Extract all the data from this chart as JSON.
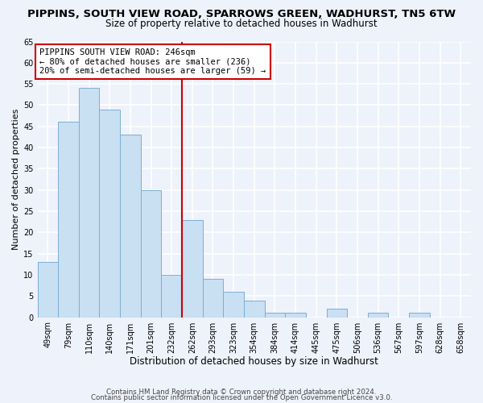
{
  "title1": "PIPPINS, SOUTH VIEW ROAD, SPARROWS GREEN, WADHURST, TN5 6TW",
  "title2": "Size of property relative to detached houses in Wadhurst",
  "xlabel": "Distribution of detached houses by size in Wadhurst",
  "ylabel": "Number of detached properties",
  "bar_values": [
    13,
    46,
    54,
    49,
    43,
    30,
    10,
    23,
    9,
    6,
    4,
    1,
    1,
    0,
    2,
    0,
    1,
    0,
    1,
    0,
    0
  ],
  "bar_labels": [
    "49sqm",
    "79sqm",
    "110sqm",
    "140sqm",
    "171sqm",
    "201sqm",
    "232sqm",
    "262sqm",
    "293sqm",
    "323sqm",
    "354sqm",
    "384sqm",
    "414sqm",
    "445sqm",
    "475sqm",
    "506sqm",
    "536sqm",
    "567sqm",
    "597sqm",
    "628sqm",
    "658sqm"
  ],
  "bar_color": "#c9dff2",
  "bar_edge_color": "#7bafd4",
  "background_color": "#eef2fa",
  "grid_color": "#ffffff",
  "vline_x": 6.5,
  "vline_color": "#cc0000",
  "annotation_title": "PIPPINS SOUTH VIEW ROAD: 246sqm",
  "annotation_line1": "← 80% of detached houses are smaller (236)",
  "annotation_line2": "20% of semi-detached houses are larger (59) →",
  "annotation_box_color": "#ffffff",
  "annotation_box_edge": "#cc0000",
  "ylim": [
    0,
    65
  ],
  "yticks": [
    0,
    5,
    10,
    15,
    20,
    25,
    30,
    35,
    40,
    45,
    50,
    55,
    60,
    65
  ],
  "footer1": "Contains HM Land Registry data © Crown copyright and database right 2024.",
  "footer2": "Contains public sector information licensed under the Open Government Licence v3.0.",
  "title1_fontsize": 9.5,
  "title2_fontsize": 8.5,
  "xlabel_fontsize": 8.5,
  "ylabel_fontsize": 8,
  "tick_fontsize": 7,
  "annot_fontsize": 7.5,
  "footer_fontsize": 6.2
}
